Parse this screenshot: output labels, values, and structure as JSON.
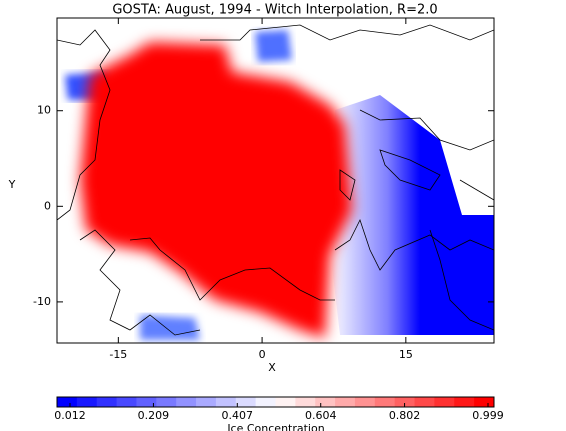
{
  "chart_data": {
    "type": "map",
    "title": "GOSTA: August, 1994 - Witch Interpolation, R=2.0",
    "xlabel": "X",
    "ylabel": "Y",
    "xlim": [
      -21.4,
      24.2
    ],
    "xticks": [
      -15,
      0,
      15
    ],
    "ylim": [
      -14.3,
      19.7
    ],
    "yticks": [
      -10,
      0,
      10
    ],
    "colorbar": {
      "label": "Ice Concentration",
      "lim": [
        0.012,
        0.999
      ],
      "ticks": [
        0.012,
        0.209,
        0.407,
        0.604,
        0.802,
        0.999
      ],
      "colormap": [
        "#0000ff",
        "#ffffff",
        "#ff0000"
      ]
    }
  }
}
